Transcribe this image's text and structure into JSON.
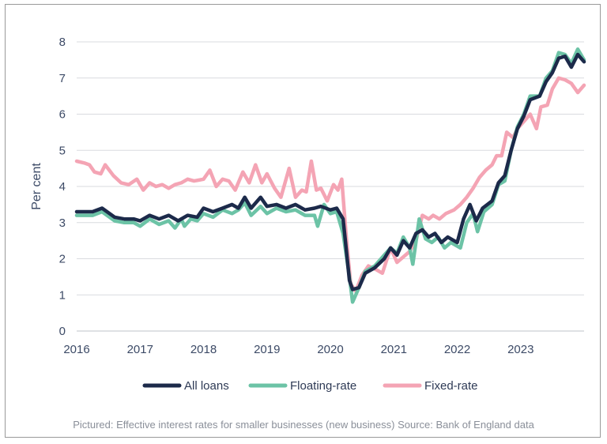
{
  "caption": "Pictured: Effective interest rates for smaller businesses (new business) Source: Bank of England data",
  "chart_data": {
    "type": "line",
    "title": "",
    "xlabel": "",
    "ylabel": "Per cent",
    "xlim": [
      2016,
      2024
    ],
    "ylim": [
      0,
      8
    ],
    "x_ticks": [
      "2016",
      "2017",
      "2018",
      "2019",
      "2020",
      "2021",
      "2022",
      "2023"
    ],
    "y_ticks": [
      "0",
      "1",
      "2",
      "3",
      "4",
      "5",
      "6",
      "7",
      "8"
    ],
    "grid": "horizontal",
    "legend_position": "bottom",
    "series": [
      {
        "name": "All loans",
        "color": "#1c2a4a",
        "points": [
          [
            2016.0,
            3.3
          ],
          [
            2016.25,
            3.3
          ],
          [
            2016.4,
            3.4
          ],
          [
            2016.6,
            3.15
          ],
          [
            2016.75,
            3.1
          ],
          [
            2016.9,
            3.1
          ],
          [
            2017.0,
            3.05
          ],
          [
            2017.15,
            3.2
          ],
          [
            2017.3,
            3.1
          ],
          [
            2017.45,
            3.2
          ],
          [
            2017.6,
            3.05
          ],
          [
            2017.75,
            3.2
          ],
          [
            2017.9,
            3.15
          ],
          [
            2018.0,
            3.4
          ],
          [
            2018.15,
            3.3
          ],
          [
            2018.3,
            3.4
          ],
          [
            2018.45,
            3.5
          ],
          [
            2018.55,
            3.4
          ],
          [
            2018.65,
            3.7
          ],
          [
            2018.75,
            3.4
          ],
          [
            2018.9,
            3.7
          ],
          [
            2019.0,
            3.45
          ],
          [
            2019.15,
            3.5
          ],
          [
            2019.3,
            3.4
          ],
          [
            2019.45,
            3.5
          ],
          [
            2019.6,
            3.35
          ],
          [
            2019.75,
            3.4
          ],
          [
            2019.85,
            3.45
          ],
          [
            2020.0,
            3.35
          ],
          [
            2020.1,
            3.4
          ],
          [
            2020.2,
            3.1
          ],
          [
            2020.3,
            1.4
          ],
          [
            2020.35,
            1.15
          ],
          [
            2020.45,
            1.2
          ],
          [
            2020.55,
            1.6
          ],
          [
            2020.7,
            1.75
          ],
          [
            2020.85,
            2.0
          ],
          [
            2020.95,
            2.3
          ],
          [
            2021.05,
            2.1
          ],
          [
            2021.15,
            2.5
          ],
          [
            2021.25,
            2.3
          ],
          [
            2021.35,
            2.7
          ],
          [
            2021.45,
            2.8
          ],
          [
            2021.55,
            2.6
          ],
          [
            2021.65,
            2.7
          ],
          [
            2021.75,
            2.45
          ],
          [
            2021.85,
            2.6
          ],
          [
            2022.0,
            2.45
          ],
          [
            2022.1,
            3.1
          ],
          [
            2022.2,
            3.5
          ],
          [
            2022.3,
            3.05
          ],
          [
            2022.4,
            3.4
          ],
          [
            2022.55,
            3.6
          ],
          [
            2022.65,
            4.1
          ],
          [
            2022.75,
            4.3
          ],
          [
            2022.85,
            5.0
          ],
          [
            2022.95,
            5.6
          ],
          [
            2023.05,
            5.95
          ],
          [
            2023.15,
            6.4
          ],
          [
            2023.3,
            6.5
          ],
          [
            2023.4,
            6.9
          ],
          [
            2023.5,
            7.15
          ],
          [
            2023.6,
            7.55
          ],
          [
            2023.7,
            7.6
          ],
          [
            2023.8,
            7.3
          ],
          [
            2023.9,
            7.65
          ],
          [
            2024.0,
            7.45
          ]
        ]
      },
      {
        "name": "Floating-rate",
        "color": "#6cc3a6",
        "points": [
          [
            2016.0,
            3.2
          ],
          [
            2016.25,
            3.2
          ],
          [
            2016.4,
            3.3
          ],
          [
            2016.6,
            3.05
          ],
          [
            2016.75,
            3.0
          ],
          [
            2016.9,
            3.0
          ],
          [
            2017.0,
            2.9
          ],
          [
            2017.15,
            3.1
          ],
          [
            2017.3,
            2.95
          ],
          [
            2017.45,
            3.05
          ],
          [
            2017.55,
            2.85
          ],
          [
            2017.65,
            3.1
          ],
          [
            2017.7,
            2.9
          ],
          [
            2017.8,
            3.1
          ],
          [
            2017.9,
            3.05
          ],
          [
            2018.0,
            3.25
          ],
          [
            2018.15,
            3.15
          ],
          [
            2018.3,
            3.35
          ],
          [
            2018.45,
            3.25
          ],
          [
            2018.55,
            3.35
          ],
          [
            2018.65,
            3.55
          ],
          [
            2018.75,
            3.2
          ],
          [
            2018.9,
            3.45
          ],
          [
            2019.0,
            3.25
          ],
          [
            2019.15,
            3.4
          ],
          [
            2019.3,
            3.3
          ],
          [
            2019.45,
            3.35
          ],
          [
            2019.6,
            3.2
          ],
          [
            2019.75,
            3.2
          ],
          [
            2019.8,
            2.9
          ],
          [
            2019.9,
            3.5
          ],
          [
            2020.0,
            3.25
          ],
          [
            2020.1,
            3.3
          ],
          [
            2020.2,
            2.7
          ],
          [
            2020.3,
            1.5
          ],
          [
            2020.35,
            0.8
          ],
          [
            2020.45,
            1.2
          ],
          [
            2020.55,
            1.65
          ],
          [
            2020.7,
            1.8
          ],
          [
            2020.85,
            2.1
          ],
          [
            2020.95,
            2.3
          ],
          [
            2021.05,
            2.15
          ],
          [
            2021.15,
            2.6
          ],
          [
            2021.25,
            2.3
          ],
          [
            2021.3,
            1.85
          ],
          [
            2021.4,
            3.1
          ],
          [
            2021.5,
            2.55
          ],
          [
            2021.6,
            2.45
          ],
          [
            2021.7,
            2.6
          ],
          [
            2021.8,
            2.3
          ],
          [
            2021.9,
            2.45
          ],
          [
            2022.05,
            2.3
          ],
          [
            2022.15,
            3.0
          ],
          [
            2022.25,
            3.25
          ],
          [
            2022.32,
            2.75
          ],
          [
            2022.42,
            3.3
          ],
          [
            2022.55,
            3.5
          ],
          [
            2022.65,
            4.05
          ],
          [
            2022.75,
            4.15
          ],
          [
            2022.85,
            5.0
          ],
          [
            2022.95,
            5.65
          ],
          [
            2023.05,
            6.0
          ],
          [
            2023.15,
            6.5
          ],
          [
            2023.3,
            6.5
          ],
          [
            2023.4,
            7.0
          ],
          [
            2023.5,
            7.2
          ],
          [
            2023.6,
            7.7
          ],
          [
            2023.7,
            7.65
          ],
          [
            2023.8,
            7.4
          ],
          [
            2023.9,
            7.8
          ],
          [
            2024.0,
            7.5
          ]
        ]
      },
      {
        "name": "Fixed-rate",
        "color": "#f4a4b4",
        "points": [
          [
            2016.0,
            4.7
          ],
          [
            2016.12,
            4.65
          ],
          [
            2016.2,
            4.6
          ],
          [
            2016.28,
            4.4
          ],
          [
            2016.38,
            4.35
          ],
          [
            2016.45,
            4.6
          ],
          [
            2016.58,
            4.3
          ],
          [
            2016.7,
            4.1
          ],
          [
            2016.82,
            4.05
          ],
          [
            2016.95,
            4.2
          ],
          [
            2017.05,
            3.9
          ],
          [
            2017.15,
            4.1
          ],
          [
            2017.25,
            4.0
          ],
          [
            2017.35,
            4.05
          ],
          [
            2017.45,
            3.95
          ],
          [
            2017.55,
            4.05
          ],
          [
            2017.65,
            4.1
          ],
          [
            2017.75,
            4.2
          ],
          [
            2017.85,
            4.15
          ],
          [
            2018.0,
            4.2
          ],
          [
            2018.1,
            4.45
          ],
          [
            2018.2,
            4.0
          ],
          [
            2018.3,
            4.2
          ],
          [
            2018.4,
            4.15
          ],
          [
            2018.5,
            3.9
          ],
          [
            2018.62,
            4.4
          ],
          [
            2018.72,
            4.1
          ],
          [
            2018.82,
            4.6
          ],
          [
            2018.92,
            4.1
          ],
          [
            2019.0,
            4.35
          ],
          [
            2019.12,
            3.95
          ],
          [
            2019.22,
            3.7
          ],
          [
            2019.35,
            4.5
          ],
          [
            2019.45,
            3.7
          ],
          [
            2019.55,
            3.9
          ],
          [
            2019.62,
            3.85
          ],
          [
            2019.7,
            4.7
          ],
          [
            2019.78,
            3.9
          ],
          [
            2019.85,
            3.95
          ],
          [
            2019.95,
            3.6
          ],
          [
            2020.05,
            4.05
          ],
          [
            2020.12,
            3.9
          ],
          [
            2020.18,
            4.2
          ],
          [
            2020.25,
            2.6
          ],
          [
            2020.32,
            1.3
          ],
          [
            2020.4,
            1.1
          ],
          [
            2020.5,
            1.55
          ],
          [
            2020.6,
            1.8
          ],
          [
            2020.72,
            1.7
          ],
          [
            2020.82,
            1.6
          ],
          [
            2020.95,
            2.3
          ],
          [
            2021.05,
            1.9
          ],
          [
            2021.15,
            2.05
          ],
          [
            2021.25,
            2.2
          ],
          [
            2021.35,
            2.5
          ],
          [
            2021.45,
            3.2
          ],
          [
            2021.55,
            3.1
          ],
          [
            2021.62,
            3.2
          ],
          [
            2021.72,
            3.1
          ],
          [
            2021.82,
            3.25
          ],
          [
            2021.95,
            3.35
          ],
          [
            2022.05,
            3.5
          ],
          [
            2022.15,
            3.7
          ],
          [
            2022.25,
            3.95
          ],
          [
            2022.35,
            4.25
          ],
          [
            2022.45,
            4.45
          ],
          [
            2022.55,
            4.6
          ],
          [
            2022.62,
            4.85
          ],
          [
            2022.7,
            4.85
          ],
          [
            2022.78,
            5.5
          ],
          [
            2022.88,
            5.35
          ],
          [
            2022.95,
            5.6
          ],
          [
            2023.05,
            5.8
          ],
          [
            2023.15,
            6.0
          ],
          [
            2023.25,
            5.6
          ],
          [
            2023.32,
            6.2
          ],
          [
            2023.42,
            6.25
          ],
          [
            2023.5,
            6.7
          ],
          [
            2023.6,
            7.0
          ],
          [
            2023.7,
            6.95
          ],
          [
            2023.8,
            6.85
          ],
          [
            2023.9,
            6.6
          ],
          [
            2024.0,
            6.8
          ]
        ]
      }
    ]
  }
}
